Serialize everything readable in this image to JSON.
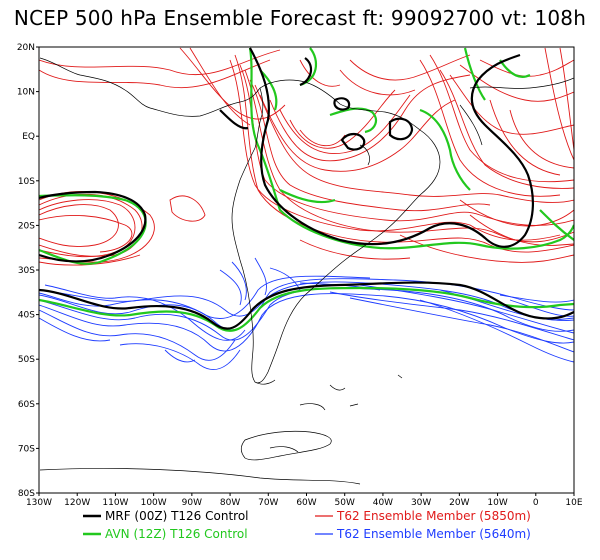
{
  "title": "NCEP 500 hPa Ensemble Forecast  ft: 99092700 vt: 108h",
  "map": {
    "lat_labels": [
      "20N",
      "10N",
      "EQ",
      "10S",
      "20S",
      "30S",
      "40S",
      "50S",
      "60S",
      "70S",
      "80S"
    ],
    "lon_labels": [
      "130W",
      "120W",
      "110W",
      "100W",
      "90W",
      "80W",
      "70W",
      "60W",
      "50W",
      "40W",
      "30W",
      "20W",
      "10W",
      "0",
      "10E"
    ]
  },
  "legend": [
    {
      "label": "MRF (00Z) T126 Control",
      "color": "#000000"
    },
    {
      "label": "AVN (12Z) T126 Control",
      "color": "#22c81e"
    },
    {
      "label": "T62 Ensemble Member (5850m)",
      "color": "#e01a1a"
    },
    {
      "label": "T62 Ensemble Member (5640m)",
      "color": "#1e3cff"
    }
  ],
  "colors": {
    "mrf": "#000000",
    "avn": "#22c81e",
    "ens5850": "#e01a1a",
    "ens5640": "#1e3cff",
    "coast": "#000000"
  }
}
